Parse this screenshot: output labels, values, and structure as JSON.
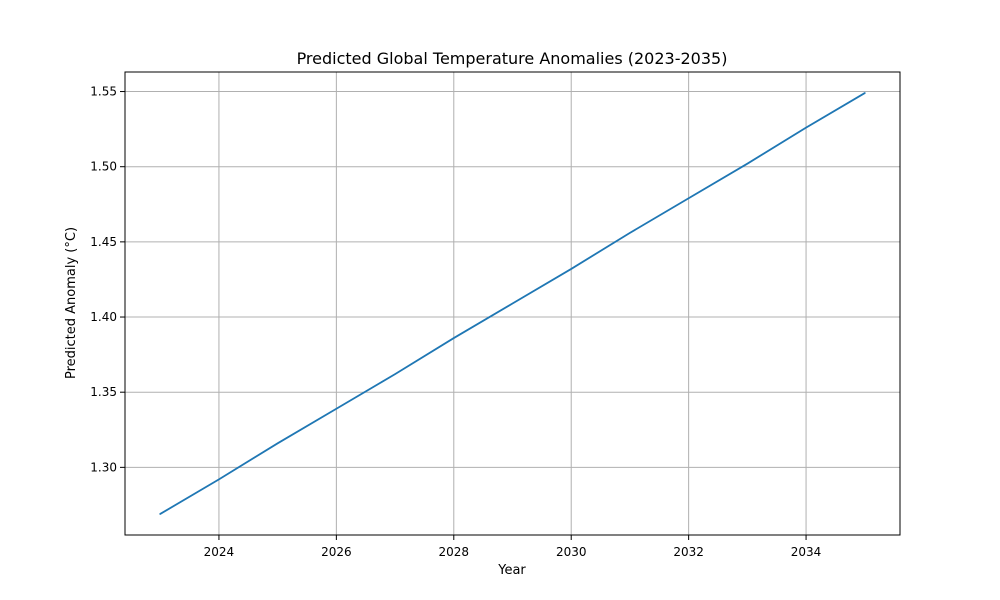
{
  "chart_data": {
    "type": "line",
    "title": "Predicted Global Temperature Anomalies (2023-2035)",
    "xlabel": "Year",
    "ylabel": "Predicted Anomaly (°C)",
    "x": [
      2023,
      2024,
      2025,
      2026,
      2027,
      2028,
      2029,
      2030,
      2031,
      2032,
      2033,
      2034,
      2035
    ],
    "series": [
      {
        "color": "#1f77b4",
        "values": [
          1.269,
          1.292,
          1.316,
          1.339,
          1.362,
          1.386,
          1.409,
          1.432,
          1.456,
          1.479,
          1.502,
          1.526,
          1.549
        ]
      }
    ],
    "xlim": [
      2022.4,
      2035.6
    ],
    "ylim": [
      1.255,
      1.563
    ],
    "xticks": [
      2024,
      2026,
      2028,
      2030,
      2032,
      2034
    ],
    "yticks": [
      1.3,
      1.35,
      1.4,
      1.45,
      1.5,
      1.55
    ],
    "xtick_labels": [
      "2024",
      "2026",
      "2028",
      "2030",
      "2032",
      "2034"
    ],
    "ytick_labels": [
      "1.30",
      "1.35",
      "1.40",
      "1.45",
      "1.50",
      "1.55"
    ],
    "grid": true,
    "legend": false
  }
}
